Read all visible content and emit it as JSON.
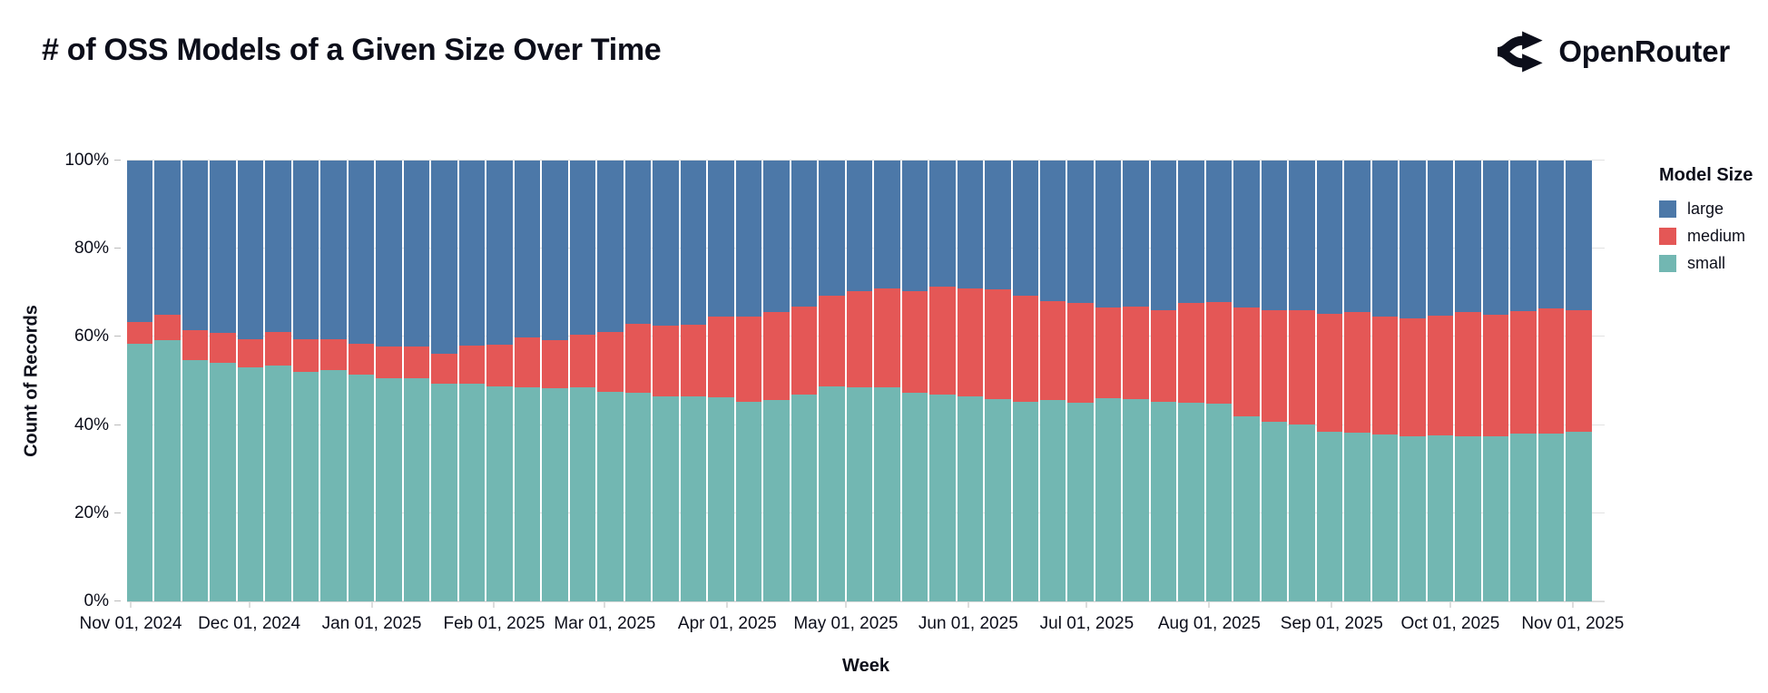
{
  "header": {
    "title": "# of OSS Models of a Given Size Over Time",
    "brand": "OpenRouter"
  },
  "chart_data": {
    "type": "bar",
    "stacked": true,
    "normalized": true,
    "title": "# of OSS Models of a Given Size Over Time",
    "xlabel": "Week",
    "ylabel": "Count of Records",
    "ylim": [
      0,
      100
    ],
    "y_ticks": [
      {
        "label": "0%",
        "value": 0
      },
      {
        "label": "20%",
        "value": 20
      },
      {
        "label": "40%",
        "value": 40
      },
      {
        "label": "60%",
        "value": 60
      },
      {
        "label": "80%",
        "value": 80
      },
      {
        "label": "100%",
        "value": 100
      }
    ],
    "x_ticks": [
      {
        "label": "Nov 01, 2024",
        "day": 0
      },
      {
        "label": "Dec 01, 2024",
        "day": 30
      },
      {
        "label": "Jan 01, 2025",
        "day": 61
      },
      {
        "label": "Feb 01, 2025",
        "day": 92
      },
      {
        "label": "Mar 01, 2025",
        "day": 120
      },
      {
        "label": "Apr 01, 2025",
        "day": 151
      },
      {
        "label": "May 01, 2025",
        "day": 181
      },
      {
        "label": "Jun 01, 2025",
        "day": 212
      },
      {
        "label": "Jul 01, 2025",
        "day": 242
      },
      {
        "label": "Aug 01, 2025",
        "day": 273
      },
      {
        "label": "Sep 01, 2025",
        "day": 304
      },
      {
        "label": "Oct 01, 2025",
        "day": 334
      },
      {
        "label": "Nov 01, 2025",
        "day": 365
      }
    ],
    "weeks": [
      "Nov 01, 2024",
      "Nov 08, 2024",
      "Nov 15, 2024",
      "Nov 22, 2024",
      "Nov 29, 2024",
      "Dec 06, 2024",
      "Dec 13, 2024",
      "Dec 20, 2024",
      "Dec 27, 2024",
      "Jan 03, 2025",
      "Jan 10, 2025",
      "Jan 17, 2025",
      "Jan 24, 2025",
      "Jan 31, 2025",
      "Feb 07, 2025",
      "Feb 14, 2025",
      "Feb 21, 2025",
      "Feb 28, 2025",
      "Mar 07, 2025",
      "Mar 14, 2025",
      "Mar 21, 2025",
      "Mar 28, 2025",
      "Apr 04, 2025",
      "Apr 11, 2025",
      "Apr 18, 2025",
      "Apr 25, 2025",
      "May 02, 2025",
      "May 09, 2025",
      "May 16, 2025",
      "May 23, 2025",
      "May 30, 2025",
      "Jun 06, 2025",
      "Jun 13, 2025",
      "Jun 20, 2025",
      "Jun 27, 2025",
      "Jul 04, 2025",
      "Jul 11, 2025",
      "Jul 18, 2025",
      "Jul 25, 2025",
      "Aug 01, 2025",
      "Aug 08, 2025",
      "Aug 15, 2025",
      "Aug 22, 2025",
      "Aug 29, 2025",
      "Sep 05, 2025",
      "Sep 12, 2025",
      "Sep 19, 2025",
      "Sep 26, 2025",
      "Oct 03, 2025",
      "Oct 10, 2025",
      "Oct 17, 2025",
      "Oct 24, 2025",
      "Oct 31, 2025"
    ],
    "series": [
      {
        "name": "small",
        "color": "#72b7b2",
        "values": [
          58.5,
          59.2,
          54.8,
          54.1,
          53.1,
          53.4,
          52.0,
          52.4,
          51.4,
          50.7,
          50.7,
          49.3,
          49.3,
          48.8,
          48.6,
          48.3,
          48.6,
          47.6,
          47.3,
          46.6,
          46.6,
          46.3,
          45.2,
          45.6,
          46.9,
          48.7,
          48.6,
          48.6,
          47.3,
          46.9,
          46.6,
          45.9,
          45.2,
          45.6,
          45.0,
          46.1,
          45.9,
          45.2,
          45.0,
          44.8,
          41.9,
          40.8,
          40.1,
          38.4,
          38.2,
          37.8,
          37.4,
          37.6,
          37.4,
          37.4,
          38.1,
          38.1,
          38.4
        ]
      },
      {
        "name": "medium",
        "color": "#e45756",
        "values": [
          4.8,
          5.8,
          6.8,
          6.8,
          6.4,
          7.8,
          7.5,
          7.1,
          7.1,
          7.1,
          7.1,
          6.8,
          8.7,
          9.4,
          11.3,
          10.9,
          11.9,
          13.6,
          15.6,
          16.0,
          16.1,
          18.3,
          19.4,
          20.0,
          19.9,
          20.7,
          21.8,
          22.3,
          23.1,
          24.5,
          24.3,
          24.8,
          24.2,
          22.6,
          22.7,
          20.6,
          20.9,
          20.8,
          22.7,
          23.1,
          24.8,
          25.2,
          26.0,
          26.9,
          27.4,
          26.8,
          26.7,
          27.2,
          28.2,
          27.6,
          27.7,
          28.4,
          27.7
        ]
      },
      {
        "name": "large",
        "color": "#4c78a8",
        "values": [
          36.7,
          35.0,
          38.4,
          39.1,
          40.5,
          38.8,
          40.5,
          40.5,
          41.5,
          42.2,
          42.2,
          43.9,
          42.0,
          41.8,
          40.1,
          40.8,
          39.5,
          38.8,
          37.1,
          37.4,
          37.3,
          35.4,
          35.4,
          34.4,
          33.2,
          30.6,
          29.6,
          29.1,
          29.6,
          28.6,
          29.1,
          29.3,
          30.6,
          31.8,
          32.3,
          33.3,
          33.2,
          34.0,
          32.3,
          32.1,
          33.3,
          34.0,
          33.9,
          34.7,
          34.4,
          35.4,
          35.9,
          35.2,
          34.4,
          35.0,
          34.2,
          33.5,
          33.9
        ]
      }
    ],
    "legend": {
      "title": "Model Size",
      "position": "right",
      "entries": [
        "large",
        "medium",
        "small"
      ]
    },
    "grid": true
  }
}
